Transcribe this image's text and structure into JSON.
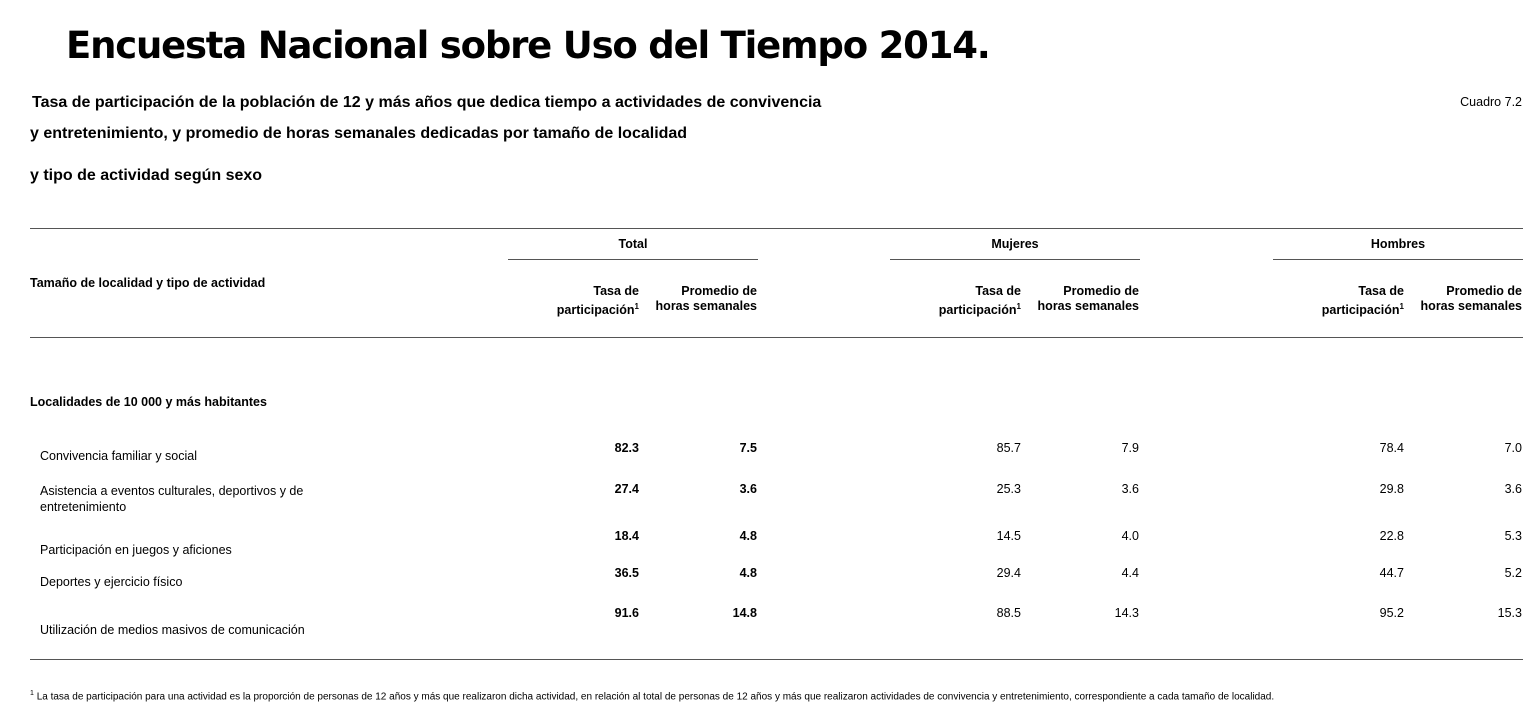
{
  "title": "Encuesta Nacional sobre Uso del Tiempo 2014.",
  "subtitle_lines": [
    "Tasa de participación de la población de 12 y más años que dedica tiempo a actividades de convivencia",
    "y entretenimiento, y promedio de horas semanales dedicadas por tamaño de localidad",
    "y tipo de actividad según sexo"
  ],
  "cuadro": "Cuadro 7.2",
  "table": {
    "row_header": "Tamaño de localidad y tipo de actividad",
    "groups": [
      "Total",
      "Mujeres",
      "Hombres"
    ],
    "col_tasa_line1": "Tasa de",
    "col_tasa_line2": "participación",
    "col_tasa_sup": "1",
    "col_prom_line1": "Promedio de",
    "col_prom_line2": "horas semanales",
    "section": "Localidades de 10 000 y más habitantes",
    "rows": [
      {
        "label": "Convivencia familiar y social",
        "values": [
          "82.3",
          "7.5",
          "85.7",
          "7.9",
          "78.4",
          "7.0"
        ]
      },
      {
        "label": "Asistencia a eventos culturales, deportivos y de entretenimiento",
        "values": [
          "27.4",
          "3.6",
          "25.3",
          "3.6",
          "29.8",
          "3.6"
        ]
      },
      {
        "label": "Participación en juegos y aficiones",
        "values": [
          "18.4",
          "4.8",
          "14.5",
          "4.0",
          "22.8",
          "5.3"
        ]
      },
      {
        "label": "Deportes y ejercicio físico",
        "values": [
          "36.5",
          "4.8",
          "29.4",
          "4.4",
          "44.7",
          "5.2"
        ]
      },
      {
        "label": "Utilización de medios masivos de comunicación",
        "values": [
          "91.6",
          "14.8",
          "88.5",
          "14.3",
          "95.2",
          "15.3"
        ]
      }
    ]
  },
  "footnote_mark": "1",
  "footnote": "La tasa de participación para una actividad es la proporción de personas de 12 años y más que realizaron dicha actividad, en relación al total de personas de 12 años y más que realizaron actividades de convivencia y entretenimiento, correspondiente a cada tamaño de localidad."
}
